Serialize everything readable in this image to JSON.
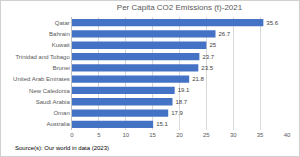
{
  "chart_data": {
    "type": "bar",
    "orientation": "horizontal",
    "title": "Per Capita CO2 Emissions (t)-2021",
    "categories": [
      "Qatar",
      "Bahrain",
      "Kuwait",
      "Trinidad and Tobago",
      "Brunei",
      "United Arab Emirates",
      "New Caledonia",
      "Saudi Arabia",
      "Oman",
      "Australia"
    ],
    "values": [
      35.6,
      26.7,
      25,
      23.7,
      23.5,
      21.8,
      19.1,
      18.7,
      17.9,
      15.1
    ],
    "color": "#4472c4",
    "xlim": [
      0,
      40
    ],
    "xticks": [
      0,
      5,
      10,
      15,
      20,
      25,
      30,
      35,
      40
    ],
    "grid": true,
    "data_labels": true,
    "annotations": [
      "Source(s): Our world in data (2023)"
    ]
  }
}
